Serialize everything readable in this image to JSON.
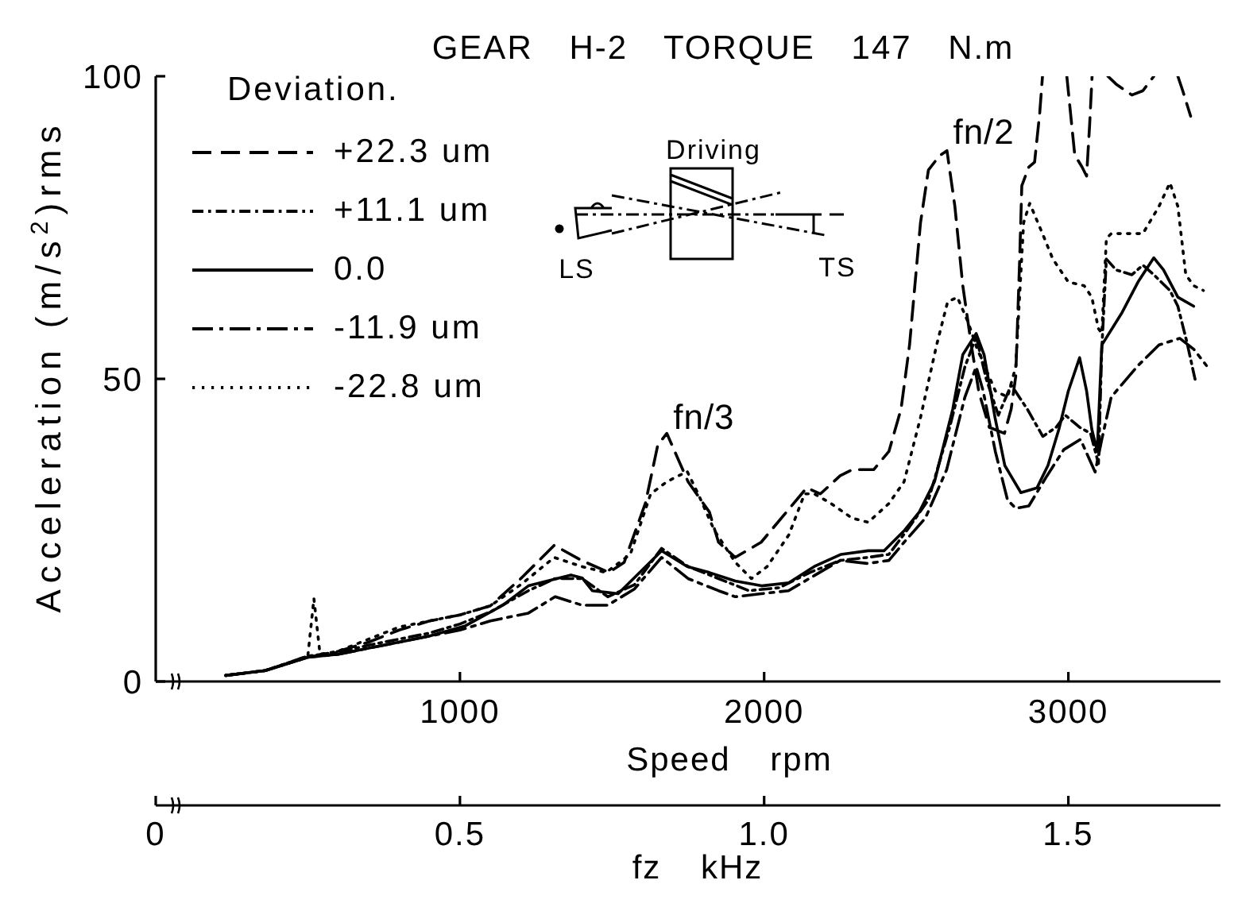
{
  "chart_data": {
    "type": "line",
    "title": "GEAR H-2 TORQUE 147 N.m",
    "xlabel": "Speed rpm",
    "ylabel": "Acceleration (m/s$^{2}$)rms",
    "x2label": "fz kHz",
    "legend_title": "Deviation.",
    "legend": "top left",
    "marker": "none",
    "xlim": [
      0,
      3500
    ],
    "xticks": [
      1000,
      2000,
      3000
    ],
    "ylim": [
      0,
      100
    ],
    "yticks": [
      0,
      50,
      100
    ],
    "x2lim": [
      0,
      1.75
    ],
    "x2ticks": [
      0,
      0.5,
      {
        "value": 1,
        "label": "1.0"
      },
      1.5
    ],
    "annotations": [
      {
        "text": "fn/3",
        "x": 1680,
        "y": 41
      },
      {
        "text": "fn/2",
        "x": 2600,
        "y": 88
      },
      "Driving",
      "LS",
      "TS"
    ],
    "series": [
      {
        "name": "+22.3 um",
        "color": "#000000",
        "line_style": "dashed",
        "x": [
          230,
          360,
          500,
          600,
          700,
          800,
          900,
          1000,
          1100,
          1200,
          1310,
          1400,
          1490,
          1540,
          1610,
          1650,
          1680,
          1750,
          1820,
          1850,
          1905,
          1990,
          2080,
          2140,
          2185,
          2250,
          2290,
          2360,
          2410,
          2450,
          2478,
          2514,
          2540,
          2577,
          2601,
          2627,
          2653,
          2681,
          2706,
          2740,
          2790,
          2812,
          2827,
          2840,
          2847,
          2870,
          2889,
          2906,
          2915,
          2960,
          2995,
          3021,
          3045,
          3060,
          3070,
          3078,
          3100,
          3130,
          3157,
          3209,
          3245,
          3281,
          3320,
          3360,
          3376,
          3402
        ],
        "values": [
          1,
          1.8,
          4,
          5,
          6.5,
          8.5,
          10,
          11,
          12.5,
          17,
          22.5,
          20,
          18,
          19.7,
          29.5,
          39,
          41,
          33,
          28,
          23,
          20.5,
          23,
          28.4,
          32,
          31,
          34,
          35,
          35,
          38,
          45,
          55.6,
          75.8,
          84.5,
          86.9,
          87.7,
          78.5,
          65.4,
          55.6,
          47.8,
          42,
          41,
          45,
          50.4,
          69.8,
          81.9,
          85,
          85.8,
          94,
          100,
          null,
          100,
          87,
          85,
          83.5,
          92,
          100,
          null,
          100,
          98.7,
          96.9,
          97.6,
          100,
          null,
          100,
          97.6,
          93.4
        ]
      },
      {
        "name": "+11.1 um",
        "color": "#000000",
        "line_style": "dashdot",
        "x": [
          230,
          360,
          500,
          600,
          700,
          800,
          900,
          1000,
          1100,
          1225,
          1313,
          1402,
          1486,
          1574,
          1663,
          1750,
          1850,
          1950,
          2050,
          2150,
          2250,
          2340,
          2410,
          2470,
          2540,
          2610,
          2660,
          2697,
          2730,
          2770,
          2812,
          2865,
          2916,
          2960,
          2990,
          3037,
          3073,
          3099,
          3110,
          3125,
          3157,
          3209,
          3245,
          3281,
          3334,
          3360,
          3390,
          3418
        ],
        "values": [
          1,
          1.8,
          4.2,
          4.8,
          6,
          7,
          8,
          9.5,
          11.5,
          15,
          17,
          17,
          14,
          16,
          22,
          19,
          17,
          15,
          15.5,
          18,
          20,
          20.5,
          21,
          25,
          30,
          42,
          52,
          57,
          50,
          44,
          49,
          45,
          40.5,
          42,
          44,
          42,
          41,
          36,
          55,
          69.8,
          68,
          67.2,
          68.8,
          67.2,
          64.6,
          62,
          56,
          49.6
        ]
      },
      {
        "name": "0.0",
        "color": "#000000",
        "line_style": "solid",
        "x": [
          230,
          360,
          500,
          600,
          700,
          800,
          900,
          1018,
          1141,
          1225,
          1365,
          1402,
          1435,
          1520,
          1663,
          1747,
          1820,
          1905,
          1992,
          2081,
          2165,
          2253,
          2342,
          2394,
          2462,
          2510,
          2560,
          2620,
          2653,
          2697,
          2723,
          2759,
          2791,
          2844,
          2897,
          2933,
          2969,
          3000,
          3037,
          3060,
          3077,
          3095,
          3110,
          3177,
          3229,
          3281,
          3313,
          3360,
          3412
        ],
        "values": [
          1,
          1.8,
          4,
          4.5,
          5.5,
          6.5,
          7.5,
          9.2,
          12.6,
          15.8,
          17.6,
          17.1,
          15,
          14.5,
          21.6,
          19,
          18,
          16.6,
          15.8,
          16.3,
          19,
          21,
          21.6,
          21.6,
          25,
          28,
          33,
          45,
          54,
          57.5,
          54,
          43.6,
          35.7,
          31.2,
          32,
          35.7,
          41.7,
          48,
          53.5,
          48,
          41.7,
          38,
          55.6,
          61,
          66,
          70,
          68,
          63.5,
          62
        ]
      },
      {
        "name": "-11.9 um",
        "color": "#000000",
        "line_style": "longdashdot",
        "x": [
          230,
          360,
          500,
          600,
          700,
          800,
          900,
          1000,
          1100,
          1225,
          1313,
          1402,
          1486,
          1574,
          1663,
          1750,
          1850,
          1905,
          1990,
          2080,
          2165,
          2250,
          2340,
          2410,
          2460,
          2530,
          2600,
          2660,
          2697,
          2720,
          2760,
          2800,
          2827,
          2870,
          2930,
          2985,
          3040,
          3088,
          3110,
          3141,
          3229,
          3298,
          3366,
          3412,
          3454
        ],
        "values": [
          1,
          1.8,
          4,
          4.5,
          5.5,
          6.5,
          7.5,
          8.5,
          10,
          11.3,
          14,
          12.6,
          12.6,
          15.3,
          20.5,
          17,
          15,
          14,
          14.5,
          15,
          17.5,
          20,
          19.5,
          20,
          23,
          27,
          35,
          47,
          52,
          48,
          38,
          30,
          28.6,
          29,
          34,
          38.3,
          40,
          34.6,
          40,
          47,
          52.2,
          55.6,
          56.7,
          54.9,
          52.2
        ]
      },
      {
        "name": "-22.8 um",
        "color": "#000000",
        "line_style": "dotted",
        "x": [
          230,
          360,
          500,
          520,
          540,
          600,
          700,
          800,
          900,
          1000,
          1100,
          1200,
          1310,
          1400,
          1480,
          1560,
          1627,
          1680,
          1747,
          1783,
          1836,
          1905,
          1958,
          2010,
          2081,
          2133,
          2165,
          2217,
          2289,
          2342,
          2410,
          2460,
          2514,
          2567,
          2603,
          2635,
          2671,
          2700,
          2760,
          2800,
          2827,
          2853,
          2873,
          2915,
          2949,
          3000,
          3052,
          3077,
          3099,
          3110,
          3125,
          3141,
          3193,
          3245,
          3298,
          3334,
          3360,
          3386,
          3412,
          3444
        ],
        "values": [
          1,
          1.8,
          4.2,
          13.7,
          4.5,
          5,
          7,
          9,
          10,
          11,
          12.5,
          16,
          20.5,
          19,
          18,
          21,
          31,
          33,
          34.7,
          31,
          25,
          19.7,
          17,
          19,
          24.2,
          31,
          31,
          29.5,
          27,
          26.3,
          29.4,
          33,
          43.6,
          55.6,
          62.7,
          63.5,
          59.3,
          55,
          48,
          47,
          52,
          75.8,
          79,
          74,
          69.8,
          66,
          65.4,
          63.5,
          58.3,
          57.5,
          73.2,
          74,
          74,
          74,
          78.5,
          82.4,
          78.5,
          67.2,
          65.4,
          64.6
        ]
      }
    ]
  }
}
